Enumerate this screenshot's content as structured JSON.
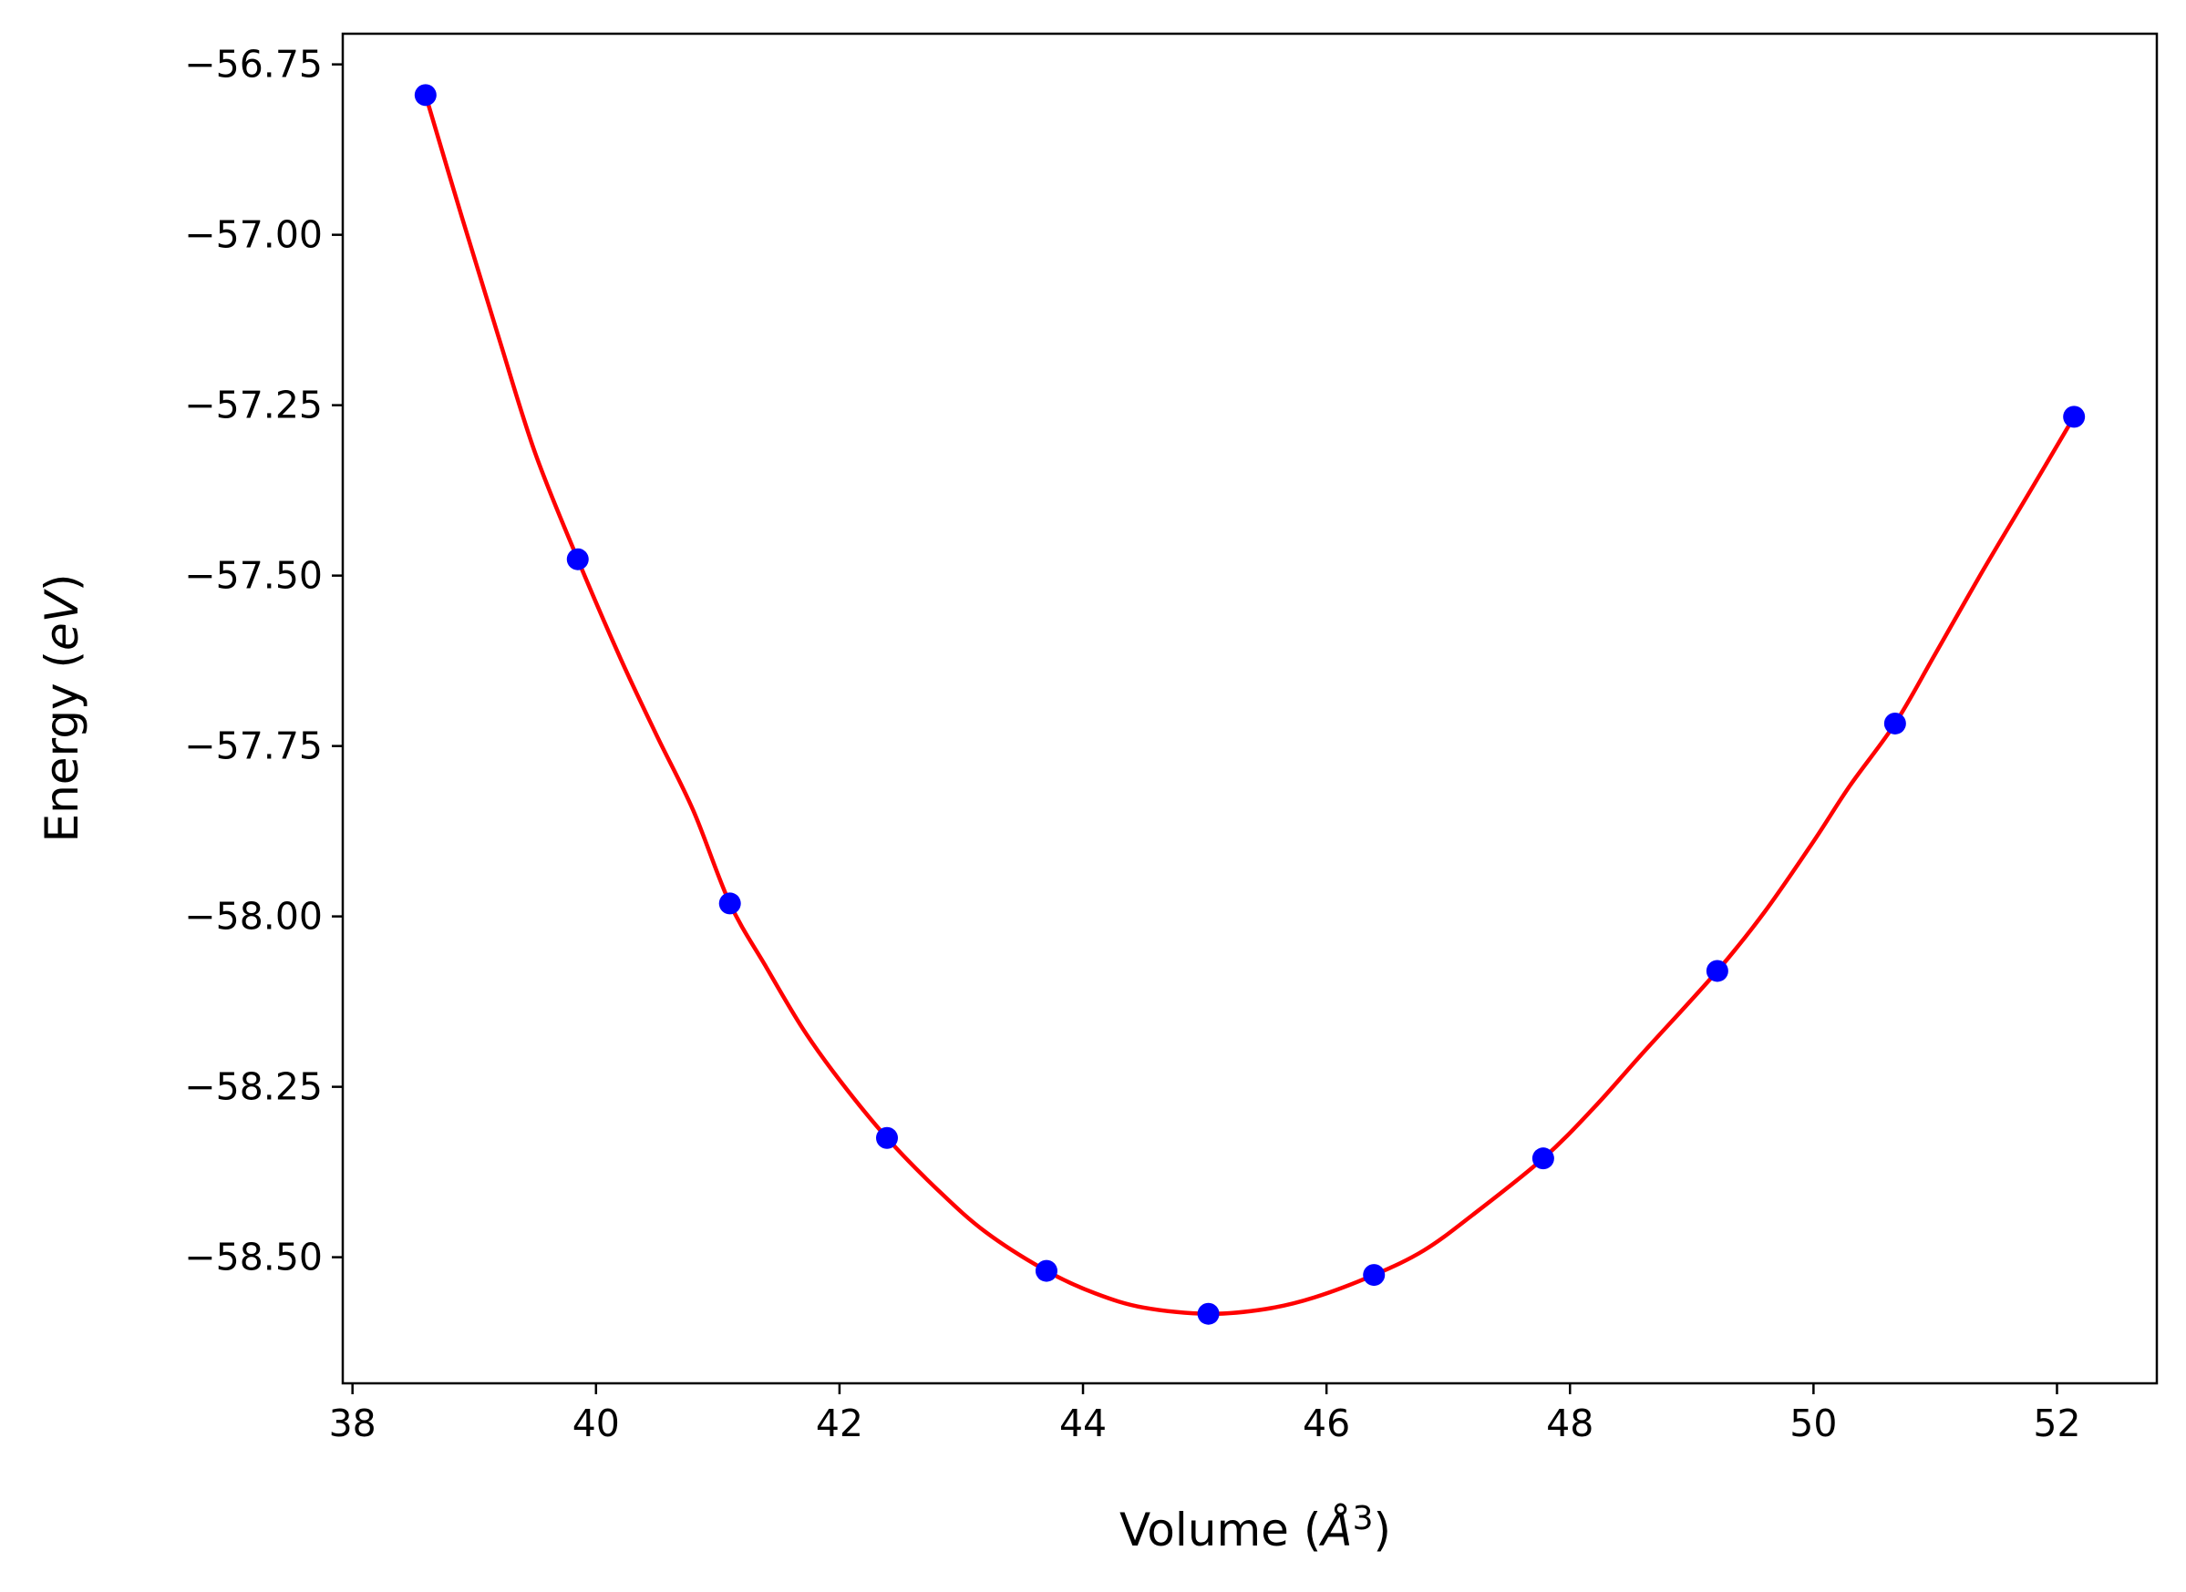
{
  "chart_data": {
    "type": "line",
    "title": "",
    "xlabel": "Volume (Å³)",
    "ylabel": "Energy (eV)",
    "xlim": [
      37.92,
      52.82
    ],
    "ylim": [
      -58.685,
      -56.705
    ],
    "x_ticks": [
      38,
      40,
      42,
      44,
      46,
      48,
      50,
      52
    ],
    "x_tick_labels": [
      "38",
      "40",
      "42",
      "44",
      "46",
      "48",
      "50",
      "52"
    ],
    "y_ticks": [
      -56.75,
      -57.0,
      -57.25,
      -57.5,
      -57.75,
      -58.0,
      -58.25,
      -58.5
    ],
    "y_tick_labels": [
      "−56.75",
      "−57.00",
      "−57.25",
      "−57.50",
      "−57.75",
      "−58.00",
      "−58.25",
      "−58.50"
    ],
    "grid": false,
    "legend": null,
    "series": [
      {
        "style": "markers",
        "color": "#0000ff",
        "x": [
          38.6,
          39.85,
          41.1,
          42.39,
          43.7,
          45.03,
          46.39,
          47.78,
          49.21,
          50.67,
          52.14
        ],
        "y": [
          -56.795,
          -57.476,
          -57.981,
          -58.325,
          -58.52,
          -58.583,
          -58.526,
          -58.355,
          -58.08,
          -57.717,
          -57.267
        ]
      },
      {
        "style": "line",
        "color": "#ff0000",
        "x": [
          38.6,
          38.9,
          39.2,
          39.5,
          39.85,
          40.2,
          40.5,
          40.8,
          41.1,
          41.4,
          41.7,
          42.0,
          42.39,
          42.8,
          43.2,
          43.7,
          44.1,
          44.5,
          45.03,
          45.5,
          45.9,
          46.39,
          46.8,
          47.2,
          47.78,
          48.2,
          48.6,
          49.21,
          49.6,
          50.0,
          50.3,
          50.67,
          51.0,
          51.4,
          51.8,
          52.14
        ],
        "y": [
          -56.795,
          -56.975,
          -57.15,
          -57.32,
          -57.476,
          -57.621,
          -57.735,
          -57.845,
          -57.981,
          -58.075,
          -58.165,
          -58.24,
          -58.325,
          -58.4,
          -58.463,
          -58.52,
          -58.553,
          -58.574,
          -58.583,
          -58.576,
          -58.559,
          -58.526,
          -58.49,
          -58.438,
          -58.355,
          -58.28,
          -58.2,
          -58.08,
          -57.993,
          -57.89,
          -57.808,
          -57.717,
          -57.615,
          -57.49,
          -57.37,
          -57.267
        ]
      }
    ]
  }
}
